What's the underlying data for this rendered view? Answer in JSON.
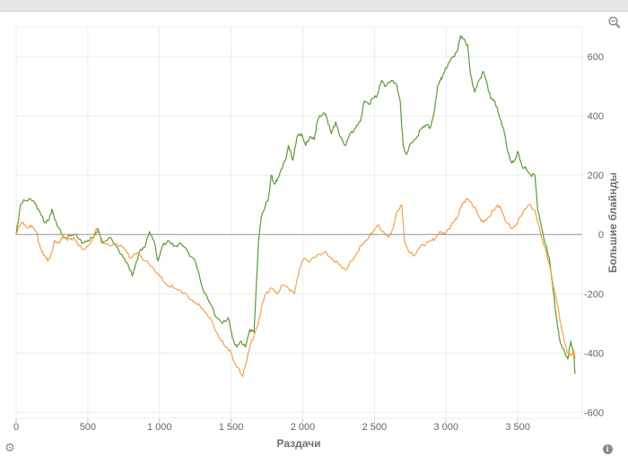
{
  "icons": {
    "zoom": "zoom-out-icon",
    "settings": "gear-icon",
    "info": "info-icon"
  },
  "colors": {
    "green": "#5c9a33",
    "orange": "#f5a04a",
    "baseline": "#999999",
    "grid": "#ececec"
  },
  "chart_data": {
    "type": "line",
    "title": "",
    "xlabel": "Раздачи",
    "ylabel": "Большие блайнды",
    "xlim": [
      0,
      3950
    ],
    "ylim": [
      -620,
      700
    ],
    "x_ticks": [
      {
        "value": 0,
        "label": "0"
      },
      {
        "value": 500,
        "label": "500"
      },
      {
        "value": 1000,
        "label": "1 000"
      },
      {
        "value": 1500,
        "label": "1 500"
      },
      {
        "value": 2000,
        "label": "2 000"
      },
      {
        "value": 2500,
        "label": "2 500"
      },
      {
        "value": 3000,
        "label": "3 000"
      },
      {
        "value": 3500,
        "label": "3 500"
      }
    ],
    "y_ticks": [
      {
        "value": 600,
        "label": "600"
      },
      {
        "value": 400,
        "label": "400"
      },
      {
        "value": 200,
        "label": "200"
      },
      {
        "value": 0,
        "label": "0"
      },
      {
        "value": -200,
        "label": "-200"
      },
      {
        "value": -400,
        "label": "-400"
      },
      {
        "value": -600,
        "label": "-600"
      }
    ],
    "grid": true,
    "series": [
      {
        "color": "#5c9a33",
        "points": [
          [
            0,
            0
          ],
          [
            30,
            100
          ],
          [
            60,
            115
          ],
          [
            100,
            120
          ],
          [
            140,
            100
          ],
          [
            170,
            70
          ],
          [
            200,
            40
          ],
          [
            230,
            50
          ],
          [
            250,
            85
          ],
          [
            270,
            50
          ],
          [
            300,
            20
          ],
          [
            330,
            -10
          ],
          [
            380,
            -5
          ],
          [
            420,
            0
          ],
          [
            460,
            -30
          ],
          [
            500,
            -20
          ],
          [
            540,
            -10
          ],
          [
            570,
            20
          ],
          [
            600,
            -30
          ],
          [
            650,
            -10
          ],
          [
            700,
            -40
          ],
          [
            750,
            -80
          ],
          [
            780,
            -100
          ],
          [
            810,
            -140
          ],
          [
            840,
            -90
          ],
          [
            870,
            -50
          ],
          [
            900,
            -40
          ],
          [
            930,
            10
          ],
          [
            960,
            -20
          ],
          [
            990,
            -90
          ],
          [
            1020,
            -40
          ],
          [
            1060,
            -20
          ],
          [
            1100,
            -40
          ],
          [
            1150,
            -30
          ],
          [
            1200,
            -60
          ],
          [
            1250,
            -90
          ],
          [
            1300,
            -180
          ],
          [
            1350,
            -230
          ],
          [
            1400,
            -280
          ],
          [
            1440,
            -300
          ],
          [
            1480,
            -280
          ],
          [
            1510,
            -350
          ],
          [
            1540,
            -380
          ],
          [
            1570,
            -360
          ],
          [
            1600,
            -380
          ],
          [
            1630,
            -320
          ],
          [
            1660,
            -330
          ],
          [
            1690,
            -30
          ],
          [
            1710,
            60
          ],
          [
            1740,
            100
          ],
          [
            1760,
            120
          ],
          [
            1780,
            200
          ],
          [
            1800,
            170
          ],
          [
            1820,
            180
          ],
          [
            1850,
            220
          ],
          [
            1880,
            250
          ],
          [
            1900,
            300
          ],
          [
            1930,
            250
          ],
          [
            1960,
            330
          ],
          [
            1990,
            340
          ],
          [
            2020,
            300
          ],
          [
            2050,
            330
          ],
          [
            2080,
            320
          ],
          [
            2100,
            380
          ],
          [
            2120,
            400
          ],
          [
            2150,
            410
          ],
          [
            2170,
            390
          ],
          [
            2200,
            340
          ],
          [
            2230,
            380
          ],
          [
            2260,
            330
          ],
          [
            2300,
            300
          ],
          [
            2330,
            340
          ],
          [
            2370,
            360
          ],
          [
            2400,
            380
          ],
          [
            2430,
            450
          ],
          [
            2460,
            440
          ],
          [
            2490,
            460
          ],
          [
            2520,
            470
          ],
          [
            2550,
            520
          ],
          [
            2580,
            500
          ],
          [
            2620,
            520
          ],
          [
            2650,
            510
          ],
          [
            2680,
            450
          ],
          [
            2700,
            300
          ],
          [
            2720,
            270
          ],
          [
            2760,
            310
          ],
          [
            2800,
            330
          ],
          [
            2830,
            360
          ],
          [
            2860,
            370
          ],
          [
            2890,
            360
          ],
          [
            2920,
            420
          ],
          [
            2940,
            500
          ],
          [
            2960,
            520
          ],
          [
            2980,
            540
          ],
          [
            3000,
            560
          ],
          [
            3020,
            580
          ],
          [
            3050,
            600
          ],
          [
            3080,
            620
          ],
          [
            3100,
            670
          ],
          [
            3120,
            660
          ],
          [
            3150,
            640
          ],
          [
            3170,
            540
          ],
          [
            3200,
            480
          ],
          [
            3230,
            520
          ],
          [
            3260,
            550
          ],
          [
            3290,
            500
          ],
          [
            3310,
            460
          ],
          [
            3340,
            450
          ],
          [
            3370,
            400
          ],
          [
            3400,
            360
          ],
          [
            3430,
            280
          ],
          [
            3460,
            240
          ],
          [
            3480,
            250
          ],
          [
            3500,
            280
          ],
          [
            3530,
            230
          ],
          [
            3560,
            220
          ],
          [
            3590,
            200
          ],
          [
            3620,
            200
          ],
          [
            3640,
            80
          ],
          [
            3660,
            40
          ],
          [
            3690,
            -30
          ],
          [
            3720,
            -80
          ],
          [
            3750,
            -200
          ],
          [
            3770,
            -280
          ],
          [
            3790,
            -350
          ],
          [
            3810,
            -380
          ],
          [
            3830,
            -400
          ],
          [
            3850,
            -420
          ],
          [
            3870,
            -360
          ],
          [
            3890,
            -400
          ],
          [
            3900,
            -470
          ]
        ]
      },
      {
        "color": "#f5a04a",
        "points": [
          [
            0,
            0
          ],
          [
            20,
            30
          ],
          [
            50,
            40
          ],
          [
            80,
            20
          ],
          [
            110,
            30
          ],
          [
            140,
            10
          ],
          [
            160,
            -30
          ],
          [
            180,
            -60
          ],
          [
            200,
            -70
          ],
          [
            220,
            -90
          ],
          [
            250,
            -60
          ],
          [
            270,
            -20
          ],
          [
            300,
            -30
          ],
          [
            330,
            -5
          ],
          [
            360,
            -20
          ],
          [
            400,
            -10
          ],
          [
            440,
            -40
          ],
          [
            480,
            -50
          ],
          [
            520,
            -30
          ],
          [
            560,
            20
          ],
          [
            600,
            -20
          ],
          [
            650,
            -40
          ],
          [
            700,
            -30
          ],
          [
            760,
            -50
          ],
          [
            800,
            -80
          ],
          [
            850,
            -60
          ],
          [
            900,
            -90
          ],
          [
            950,
            -110
          ],
          [
            1000,
            -140
          ],
          [
            1050,
            -170
          ],
          [
            1100,
            -180
          ],
          [
            1150,
            -190
          ],
          [
            1200,
            -210
          ],
          [
            1250,
            -230
          ],
          [
            1300,
            -250
          ],
          [
            1350,
            -280
          ],
          [
            1400,
            -330
          ],
          [
            1430,
            -360
          ],
          [
            1470,
            -380
          ],
          [
            1500,
            -400
          ],
          [
            1530,
            -440
          ],
          [
            1560,
            -460
          ],
          [
            1580,
            -480
          ],
          [
            1600,
            -440
          ],
          [
            1630,
            -380
          ],
          [
            1660,
            -340
          ],
          [
            1690,
            -300
          ],
          [
            1710,
            -250
          ],
          [
            1740,
            -200
          ],
          [
            1780,
            -180
          ],
          [
            1820,
            -200
          ],
          [
            1860,
            -170
          ],
          [
            1900,
            -180
          ],
          [
            1940,
            -200
          ],
          [
            1980,
            -110
          ],
          [
            2010,
            -80
          ],
          [
            2050,
            -90
          ],
          [
            2100,
            -70
          ],
          [
            2150,
            -60
          ],
          [
            2200,
            -80
          ],
          [
            2250,
            -100
          ],
          [
            2300,
            -120
          ],
          [
            2340,
            -90
          ],
          [
            2380,
            -60
          ],
          [
            2420,
            -30
          ],
          [
            2460,
            -10
          ],
          [
            2490,
            10
          ],
          [
            2520,
            30
          ],
          [
            2560,
            10
          ],
          [
            2600,
            -10
          ],
          [
            2630,
            20
          ],
          [
            2660,
            80
          ],
          [
            2690,
            100
          ],
          [
            2710,
            -20
          ],
          [
            2740,
            -60
          ],
          [
            2780,
            -70
          ],
          [
            2820,
            -40
          ],
          [
            2860,
            -30
          ],
          [
            2900,
            -20
          ],
          [
            2930,
            -10
          ],
          [
            2960,
            10
          ],
          [
            2990,
            0
          ],
          [
            3020,
            20
          ],
          [
            3050,
            40
          ],
          [
            3080,
            60
          ],
          [
            3110,
            100
          ],
          [
            3140,
            120
          ],
          [
            3170,
            110
          ],
          [
            3200,
            90
          ],
          [
            3230,
            60
          ],
          [
            3260,
            40
          ],
          [
            3300,
            60
          ],
          [
            3330,
            80
          ],
          [
            3360,
            100
          ],
          [
            3390,
            80
          ],
          [
            3420,
            40
          ],
          [
            3460,
            20
          ],
          [
            3500,
            40
          ],
          [
            3540,
            80
          ],
          [
            3580,
            100
          ],
          [
            3620,
            80
          ],
          [
            3660,
            0
          ],
          [
            3700,
            -60
          ],
          [
            3740,
            -150
          ],
          [
            3770,
            -220
          ],
          [
            3800,
            -300
          ],
          [
            3830,
            -370
          ],
          [
            3850,
            -400
          ],
          [
            3870,
            -410
          ],
          [
            3890,
            -390
          ],
          [
            3900,
            -420
          ]
        ]
      }
    ]
  }
}
